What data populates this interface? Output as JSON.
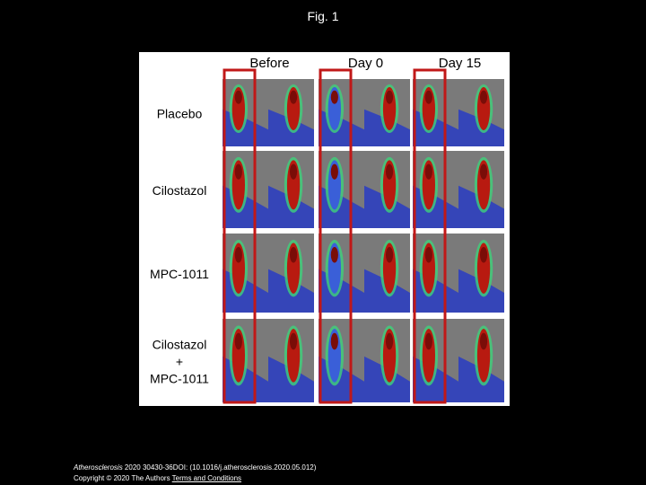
{
  "header": {
    "title": "Fig. 1"
  },
  "figure": {
    "columns": [
      "Before",
      "Day 0",
      "Day 15"
    ],
    "rows": [
      [
        "Placebo"
      ],
      [
        "Cilostazol"
      ],
      [
        "MPC-1011"
      ],
      [
        "Cilostazol",
        "+",
        "MPC-1011"
      ]
    ]
  },
  "footer": {
    "journal": "Atherosclerosis",
    "citation": "2020 30430-36DOI: (10.1016/j.atherosclerosis.2020.05.012)",
    "copyright": "Copyright © 2020 The Authors",
    "link": "Terms and Conditions"
  }
}
